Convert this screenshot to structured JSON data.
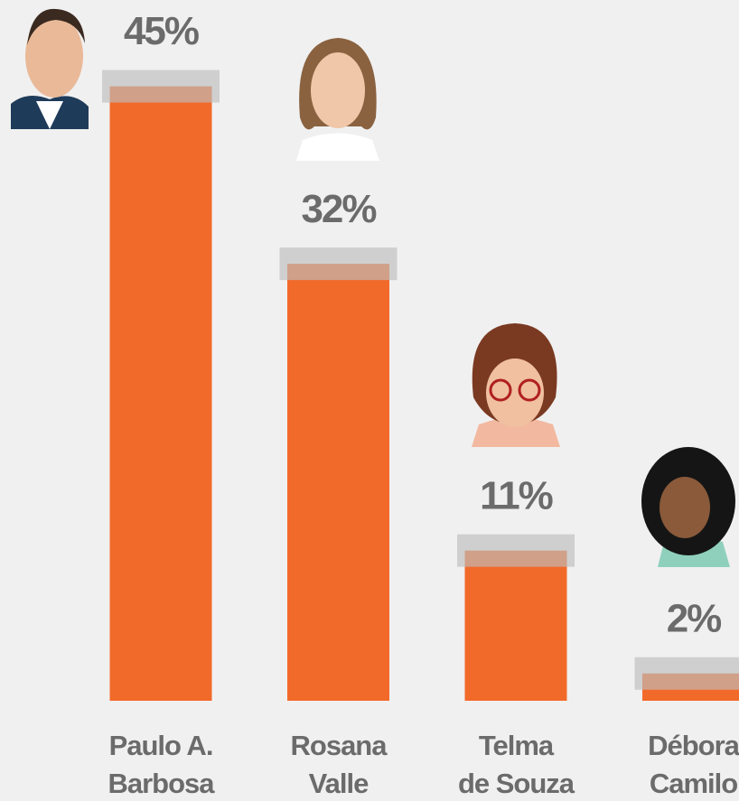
{
  "chart_data": {
    "type": "bar",
    "categories": [
      [
        "Paulo A.",
        "Barbosa"
      ],
      [
        "Rosana",
        "Valle"
      ],
      [
        "Telma",
        "de Souza"
      ],
      [
        "Débora",
        "Camilo"
      ]
    ],
    "values": [
      45,
      32,
      11,
      2
    ],
    "value_labels": [
      "45%",
      "32%",
      "11%",
      "2%"
    ],
    "color": "#f26a2a",
    "ylim": [
      0,
      50
    ]
  }
}
